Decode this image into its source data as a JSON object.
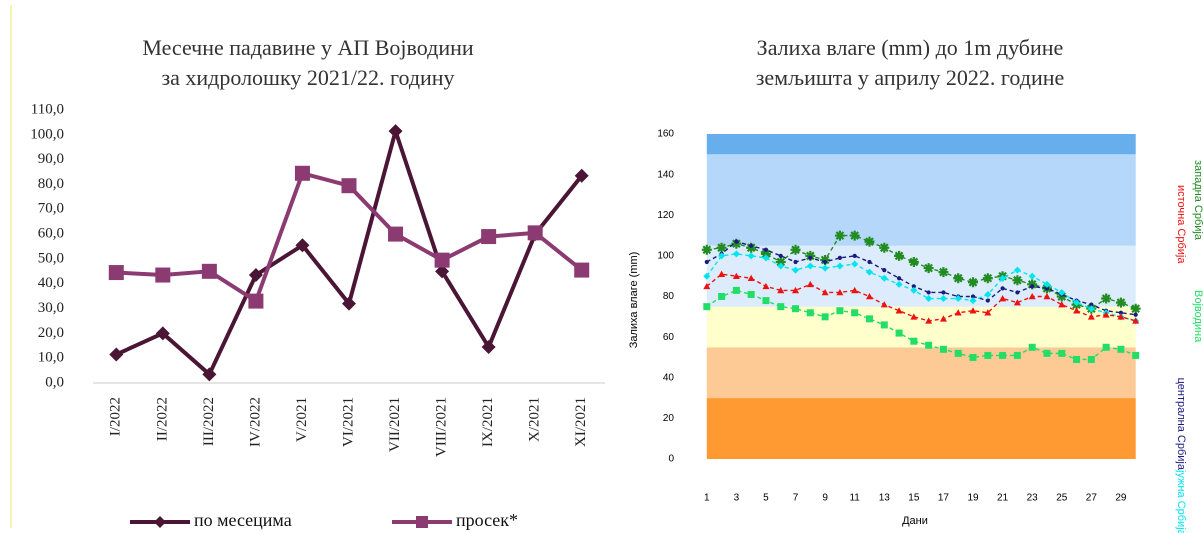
{
  "chart_data": [
    {
      "type": "line",
      "title": [
        "Месечне падавине у АП Војводини",
        "за хидролошку 2021/22. годину"
      ],
      "categories": [
        "I/2022",
        "II/2022",
        "III/2022",
        "IV/2022",
        "V/2021",
        "VI/2021",
        "VII/2021",
        "VIII/2021",
        "IX/2021",
        "X/2021",
        "XI/2021"
      ],
      "series": [
        {
          "name": "по месецима",
          "color": "#4b1535",
          "marker": "diamond",
          "values": [
            11.5,
            20,
            3.5,
            43.5,
            55.5,
            32,
            101.5,
            45,
            14.5,
            60,
            83.5
          ]
        },
        {
          "name": "просек*",
          "color": "#8b3a72",
          "marker": "square",
          "values": [
            44.5,
            43.5,
            45,
            33,
            84.5,
            79.5,
            60,
            49.5,
            59,
            60.5,
            45.5
          ]
        }
      ],
      "ylim": [
        0,
        110
      ],
      "yticks": [
        {
          "value": 0,
          "label": "0,0"
        },
        {
          "value": 10,
          "label": "10,0"
        },
        {
          "value": 20,
          "label": "20,0"
        },
        {
          "value": 30,
          "label": "30,0"
        },
        {
          "value": 40,
          "label": "40,0"
        },
        {
          "value": 50,
          "label": "50,0"
        },
        {
          "value": 60,
          "label": "60,0"
        },
        {
          "value": 70,
          "label": "70,0"
        },
        {
          "value": 80,
          "label": "80,0"
        },
        {
          "value": 90,
          "label": "90,0"
        },
        {
          "value": 100,
          "label": "100,0"
        },
        {
          "value": 110,
          "label": "110,0"
        }
      ],
      "legend": "bottom"
    },
    {
      "type": "line",
      "title": [
        "Залиха влаге (mm) до 1m дубине",
        "земљишта у априлу 2022. године"
      ],
      "xlabel": "Дани",
      "ylabel": "Залиха влаге (mm)",
      "x": [
        1,
        2,
        3,
        4,
        5,
        6,
        7,
        8,
        9,
        10,
        11,
        12,
        13,
        14,
        15,
        16,
        17,
        18,
        19,
        20,
        21,
        22,
        23,
        24,
        25,
        26,
        27,
        28,
        29,
        30
      ],
      "series": [
        {
          "name": "западна Србија",
          "color": "#228b22",
          "marker": "star",
          "values": [
            103,
            104,
            106,
            104,
            101,
            97,
            103,
            100,
            98,
            110,
            110,
            107,
            104,
            100,
            97,
            94,
            92,
            89,
            87,
            89,
            90,
            88,
            86,
            84,
            80,
            76,
            74,
            79,
            77,
            74
          ]
        },
        {
          "name": "централна Србија",
          "color": "#1a1a80",
          "marker": "dot",
          "values": [
            97,
            101,
            107,
            105,
            103,
            100,
            97,
            99,
            97,
            99,
            100,
            97,
            93,
            89,
            85,
            82,
            82,
            80,
            80,
            78,
            84,
            82,
            85,
            84,
            81,
            78,
            76,
            73,
            72,
            71
          ]
        },
        {
          "name": "јужна Србија",
          "color": "#00e5ee",
          "marker": "diamond",
          "values": [
            90,
            100,
            101,
            100,
            99,
            95,
            93,
            95,
            94,
            95,
            96,
            92,
            89,
            86,
            83,
            79,
            79,
            79,
            78,
            81,
            89,
            93,
            90,
            86,
            82,
            77,
            74,
            72,
            70,
            68
          ]
        },
        {
          "name": "источна Србија",
          "color": "#ee1111",
          "marker": "triangle",
          "values": [
            85,
            91,
            90,
            89,
            85,
            83,
            83,
            86,
            82,
            82,
            83,
            80,
            76,
            73,
            70,
            68,
            69,
            72,
            73,
            72,
            79,
            77,
            80,
            80,
            76,
            73,
            70,
            71,
            70,
            68
          ]
        },
        {
          "name": "Војводина",
          "color": "#22dd66",
          "marker": "square",
          "values": [
            75,
            80,
            83,
            81,
            78,
            75,
            74,
            72,
            70,
            73,
            72,
            69,
            66,
            62,
            58,
            56,
            54,
            52,
            50,
            51,
            51,
            51,
            55,
            52,
            52,
            49,
            49,
            55,
            54,
            51
          ]
        }
      ],
      "bands": [
        {
          "from": 0,
          "to": 30,
          "color": "#ff9a33"
        },
        {
          "from": 30,
          "to": 55,
          "color": "#fdca96"
        },
        {
          "from": 55,
          "to": 75,
          "color": "#ffffcc"
        },
        {
          "from": 75,
          "to": 105,
          "color": "#dcecfc"
        },
        {
          "from": 105,
          "to": 150,
          "color": "#b5d7fa"
        },
        {
          "from": 150,
          "to": 160,
          "color": "#66afec"
        }
      ],
      "xlim": [
        0,
        31
      ],
      "xticks": [
        1,
        3,
        5,
        7,
        9,
        11,
        13,
        15,
        17,
        19,
        21,
        23,
        25,
        27,
        29
      ],
      "ylim": [
        0,
        160
      ],
      "yticks": [
        0,
        20,
        40,
        60,
        80,
        100,
        120,
        140,
        160
      ],
      "legend": "right"
    }
  ]
}
